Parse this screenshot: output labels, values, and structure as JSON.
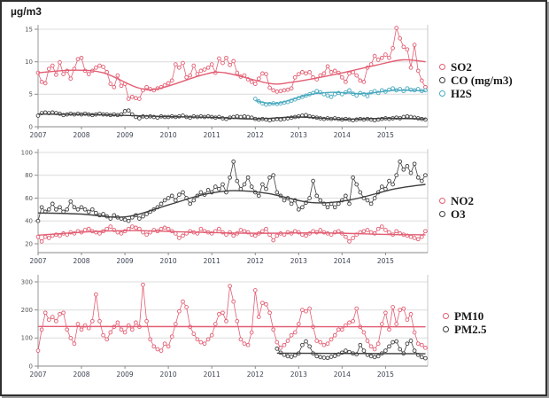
{
  "page": {
    "unit_label": "µg/m3"
  },
  "colors": {
    "pink": "#e25d72",
    "dark": "#3f3f3f",
    "cyan": "#49a9bf",
    "grid": "#dcdcdc",
    "axis": "#8a8a8a",
    "tick_text": "#3b4252"
  },
  "chart_data": [
    {
      "type": "line",
      "panel": "so2-co-h2s",
      "title": "",
      "ylabel": "µg/m3",
      "ylim": [
        0,
        15
      ],
      "yticks": [
        0,
        5,
        10,
        15
      ],
      "x_ticks": [
        2007,
        2008,
        2009,
        2010,
        2011,
        2012,
        2013,
        2014,
        2015
      ],
      "grid": true,
      "legend_position": "right",
      "series": [
        {
          "name": "SO2",
          "color": "#e25d72",
          "start": 2007.0,
          "points_per_year": 12,
          "values": [
            8.3,
            6.9,
            6.7,
            8.9,
            9.4,
            8.0,
            9.9,
            8.1,
            8.6,
            7.4,
            8.9,
            10.4,
            10.6,
            8.6,
            8.1,
            8.6,
            9.1,
            9.4,
            9.2,
            8.4,
            6.6,
            6.1,
            7.9,
            6.3,
            6.6,
            4.3,
            4.6,
            4.4,
            4.3,
            5.6,
            6.1,
            5.8,
            5.6,
            5.9,
            6.1,
            6.4,
            6.7,
            7.1,
            9.6,
            9.1,
            9.8,
            7.6,
            7.9,
            9.4,
            8.1,
            8.6,
            8.8,
            9.1,
            9.6,
            8.3,
            10.5,
            9.8,
            10.6,
            9.5,
            10.1,
            8.3,
            7.7,
            7.9,
            7.3,
            6.9,
            6.6,
            7.4,
            8.2,
            8.1,
            6.0,
            5.6,
            5.4,
            5.5,
            5.6,
            5.7,
            5.9,
            7.6,
            8.1,
            8.4,
            8.2,
            8.4,
            7.6,
            7.3,
            7.9,
            8.2,
            9.3,
            8.4,
            8.6,
            8.3,
            7.6,
            6.9,
            8.2,
            8.4,
            7.9,
            7.1,
            6.9,
            9.1,
            9.6,
            10.9,
            10.3,
            10.6,
            11.1,
            10.6,
            12.1,
            15.2,
            13.6,
            12.3,
            11.9,
            9.1,
            12.6,
            8.6,
            7.1,
            6.1
          ],
          "trend": [
            [
              2007.0,
              8.3
            ],
            [
              2007.8,
              8.7
            ],
            [
              2008.5,
              8.3
            ],
            [
              2009.3,
              6.0
            ],
            [
              2009.8,
              5.9
            ],
            [
              2010.8,
              8.0
            ],
            [
              2011.3,
              8.3
            ],
            [
              2012.3,
              6.7
            ],
            [
              2012.8,
              6.8
            ],
            [
              2013.8,
              8.0
            ],
            [
              2014.8,
              9.5
            ],
            [
              2015.4,
              10.3
            ],
            [
              2015.92,
              10.0
            ]
          ]
        },
        {
          "name": "CO (mg/m3)",
          "color": "#3f3f3f",
          "start": 2007.0,
          "points_per_year": 12,
          "values": [
            1.7,
            2.1,
            2.2,
            2.1,
            2.2,
            2.1,
            2.0,
            1.8,
            1.9,
            2.0,
            1.9,
            2.0,
            1.9,
            2.0,
            1.9,
            1.8,
            1.9,
            2.0,
            1.9,
            1.9,
            1.8,
            1.9,
            1.8,
            1.9,
            2.4,
            2.5,
            1.9,
            1.5,
            1.3,
            1.6,
            1.5,
            1.6,
            1.5,
            1.4,
            1.6,
            1.5,
            1.5,
            1.6,
            1.5,
            1.6,
            1.7,
            1.5,
            1.4,
            1.6,
            1.5,
            1.6,
            1.5,
            1.6,
            1.5,
            1.4,
            1.5,
            1.3,
            1.2,
            1.4,
            1.5,
            1.6,
            1.5,
            1.6,
            1.5,
            1.4,
            1.2,
            1.1,
            1.2,
            1.1,
            1.0,
            1.1,
            1.2,
            1.1,
            1.2,
            1.3,
            1.4,
            1.5,
            1.6,
            1.7,
            1.8,
            1.6,
            1.5,
            1.4,
            1.3,
            1.2,
            1.3,
            1.2,
            1.3,
            1.2,
            1.1,
            1.2,
            1.1,
            1.0,
            1.1,
            1.2,
            1.1,
            1.2,
            1.1,
            1.0,
            1.1,
            1.2,
            1.3,
            1.2,
            1.3,
            1.4,
            1.3,
            1.5,
            1.6,
            1.5,
            1.4,
            1.3,
            1.2,
            1.1
          ],
          "trend": [
            [
              2007.0,
              1.95
            ],
            [
              2008.0,
              1.9
            ],
            [
              2009.0,
              1.75
            ],
            [
              2010.0,
              1.55
            ],
            [
              2011.0,
              1.45
            ],
            [
              2012.0,
              1.2
            ],
            [
              2013.0,
              1.5
            ],
            [
              2014.0,
              1.15
            ],
            [
              2015.0,
              1.3
            ],
            [
              2015.92,
              1.2
            ]
          ]
        },
        {
          "name": "H2S",
          "color": "#49a9bf",
          "start": 2012.0,
          "points_per_year": 12,
          "values": [
            4.3,
            3.9,
            3.6,
            3.4,
            3.5,
            3.6,
            3.5,
            3.6,
            3.7,
            3.8,
            4.0,
            4.2,
            4.4,
            4.6,
            4.8,
            5.0,
            5.2,
            5.5,
            5.3,
            5.0,
            4.8,
            4.6,
            5.0,
            5.2,
            5.0,
            5.3,
            5.6,
            5.1,
            4.8,
            5.2,
            5.0,
            4.7,
            5.3,
            5.5,
            5.2,
            5.6,
            5.4,
            5.7,
            5.9,
            5.6,
            5.8,
            5.5,
            5.9,
            5.7,
            5.6,
            5.8,
            5.5,
            5.6
          ],
          "trend": [
            [
              2012.0,
              4.0
            ],
            [
              2012.5,
              3.6
            ],
            [
              2013.2,
              4.9
            ],
            [
              2013.8,
              5.3
            ],
            [
              2014.5,
              5.1
            ],
            [
              2015.2,
              5.6
            ],
            [
              2015.92,
              5.5
            ]
          ]
        }
      ]
    },
    {
      "type": "line",
      "panel": "no2-o3",
      "title": "",
      "ylabel": "µg/m3",
      "ylim": [
        12,
        100
      ],
      "yticks": [
        20,
        40,
        60,
        80,
        100
      ],
      "x_ticks": [
        2007,
        2008,
        2009,
        2010,
        2011,
        2012,
        2013,
        2014,
        2015
      ],
      "grid": true,
      "legend_position": "right",
      "series": [
        {
          "name": "NO2",
          "color": "#e25d72",
          "start": 2007.0,
          "points_per_year": 12,
          "values": [
            26,
            22,
            26,
            25,
            27,
            28,
            27,
            29,
            28,
            30,
            29,
            31,
            30,
            32,
            33,
            31,
            30,
            29,
            31,
            33,
            35,
            32,
            30,
            29,
            31,
            33,
            35,
            34,
            33,
            30,
            28,
            30,
            32,
            31,
            33,
            34,
            33,
            31,
            29,
            25,
            27,
            29,
            31,
            30,
            29,
            33,
            31,
            30,
            29,
            31,
            33,
            30,
            28,
            30,
            27,
            29,
            32,
            31,
            30,
            28,
            27,
            29,
            31,
            33,
            28,
            23,
            27,
            29,
            28,
            30,
            29,
            31,
            30,
            28,
            27,
            29,
            31,
            30,
            32,
            30,
            29,
            28,
            30,
            31,
            29,
            26,
            22,
            25,
            28,
            30,
            31,
            32,
            30,
            29,
            33,
            35,
            32,
            30,
            28,
            31,
            29,
            28,
            27,
            26,
            25,
            24,
            26,
            31
          ],
          "trend": [
            [
              2007.0,
              27.5
            ],
            [
              2008.2,
              30.5
            ],
            [
              2009.2,
              31.5
            ],
            [
              2010.5,
              30.2
            ],
            [
              2012.0,
              29.2
            ],
            [
              2013.5,
              29.5
            ],
            [
              2015.0,
              28.2
            ],
            [
              2015.92,
              27.8
            ]
          ]
        },
        {
          "name": "O3",
          "color": "#3f3f3f",
          "start": 2007.0,
          "points_per_year": 12,
          "values": [
            40,
            52,
            48,
            50,
            55,
            50,
            52,
            48,
            50,
            57,
            52,
            50,
            52,
            50,
            48,
            50,
            47,
            45,
            46,
            44,
            42,
            45,
            43,
            42,
            41,
            40,
            43,
            45,
            42,
            44,
            46,
            48,
            50,
            52,
            55,
            58,
            60,
            62,
            58,
            63,
            65,
            60,
            55,
            58,
            62,
            65,
            63,
            67,
            65,
            70,
            68,
            72,
            65,
            78,
            92,
            75,
            68,
            72,
            78,
            70,
            65,
            62,
            72,
            68,
            78,
            80,
            65,
            62,
            58,
            60,
            55,
            58,
            50,
            52,
            56,
            60,
            75,
            62,
            58,
            55,
            52,
            55,
            52,
            55,
            58,
            62,
            55,
            78,
            72,
            65,
            60,
            58,
            55,
            60,
            65,
            70,
            68,
            75,
            72,
            80,
            92,
            85,
            88,
            82,
            90,
            78,
            75,
            80
          ],
          "trend": [
            [
              2007.0,
              47
            ],
            [
              2008.0,
              46
            ],
            [
              2009.0,
              43.5
            ],
            [
              2010.0,
              54
            ],
            [
              2010.8,
              63
            ],
            [
              2011.5,
              66.5
            ],
            [
              2012.3,
              64
            ],
            [
              2013.3,
              56
            ],
            [
              2014.2,
              58.5
            ],
            [
              2015.2,
              68
            ],
            [
              2015.92,
              72
            ]
          ]
        }
      ]
    },
    {
      "type": "line",
      "panel": "pm10-pm25",
      "title": "",
      "ylabel": "µg/m3",
      "ylim": [
        0,
        300
      ],
      "yticks": [
        0,
        100,
        200,
        300
      ],
      "x_ticks": [
        2007,
        2008,
        2009,
        2010,
        2011,
        2012,
        2013,
        2014,
        2015
      ],
      "grid": true,
      "legend_position": "right",
      "series": [
        {
          "name": "PM10",
          "color": "#e25d72",
          "start": 2007.0,
          "points_per_year": 12,
          "values": [
            55,
            130,
            190,
            165,
            175,
            160,
            185,
            190,
            130,
            100,
            80,
            150,
            130,
            145,
            135,
            160,
            255,
            160,
            110,
            95,
            120,
            140,
            155,
            130,
            120,
            145,
            130,
            155,
            140,
            290,
            160,
            95,
            70,
            60,
            55,
            80,
            70,
            105,
            150,
            195,
            230,
            210,
            140,
            115,
            95,
            85,
            80,
            95,
            110,
            150,
            185,
            190,
            160,
            285,
            230,
            160,
            95,
            80,
            75,
            120,
            270,
            175,
            225,
            220,
            190,
            130,
            85,
            65,
            75,
            90,
            110,
            120,
            150,
            200,
            195,
            205,
            140,
            90,
            85,
            75,
            80,
            95,
            110,
            130,
            130,
            145,
            155,
            160,
            205,
            140,
            120,
            90,
            70,
            60,
            80,
            150,
            190,
            130,
            210,
            150,
            200,
            205,
            165,
            185,
            120,
            80,
            75,
            65
          ],
          "trend": [
            [
              2007.0,
              141
            ],
            [
              2015.92,
              140
            ]
          ]
        },
        {
          "name": "PM2.5",
          "color": "#3f3f3f",
          "start": 2012.5,
          "points_per_year": 12,
          "values": [
            62,
            48,
            40,
            35,
            33,
            38,
            45,
            75,
            88,
            70,
            45,
            35,
            32,
            30,
            29,
            33,
            36,
            42,
            48,
            55,
            50,
            45,
            42,
            75,
            55,
            40,
            35,
            32,
            35,
            45,
            55,
            70,
            85,
            88,
            60,
            45,
            80,
            90,
            55,
            40,
            32,
            28
          ],
          "trend": [
            [
              2012.5,
              46
            ],
            [
              2015.92,
              44
            ]
          ]
        }
      ]
    }
  ]
}
